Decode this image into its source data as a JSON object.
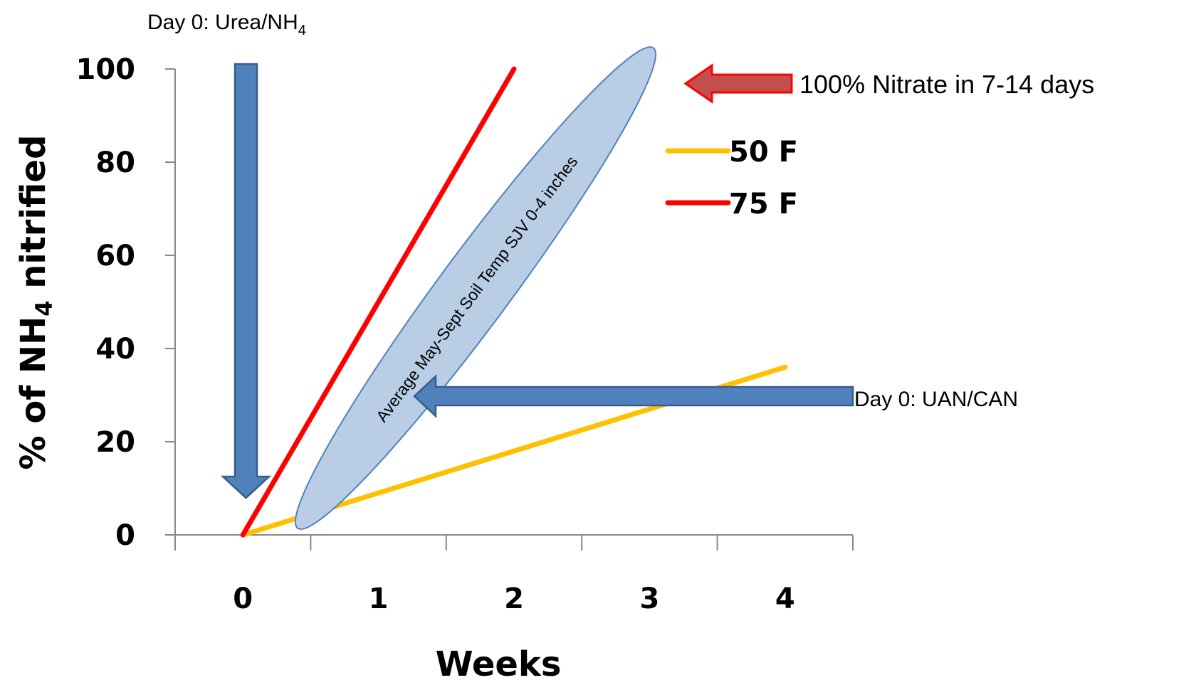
{
  "chart_data": {
    "type": "line",
    "xlabel": "Weeks",
    "ylabel_main": "% of NH",
    "ylabel_sub": "4",
    "ylabel_tail": " nitrified",
    "xlim": [
      -0.5,
      4.5
    ],
    "ylim": [
      0,
      100
    ],
    "x_ticks": [
      0,
      1,
      2,
      3,
      4
    ],
    "y_ticks": [
      0,
      20,
      40,
      60,
      80,
      100
    ],
    "grid": false,
    "legend_position": "right",
    "series": [
      {
        "name": "50 F",
        "color": "#FFC000",
        "x": [
          0,
          4
        ],
        "y": [
          0,
          36
        ]
      },
      {
        "name": "75 F",
        "color": "#FF0000",
        "x": [
          0,
          2
        ],
        "y": [
          0,
          100
        ]
      }
    ],
    "annotations": {
      "urea": {
        "text_main": "Day 0: Urea/NH",
        "text_sub": "4"
      },
      "nitrate": {
        "text": "100% Nitrate in 7-14 days"
      },
      "uan": {
        "text": "Day 0: UAN/CAN"
      },
      "ellipse": {
        "text": "Average May-Sept Soil Temp SJV 0-4 inches"
      }
    },
    "colors": {
      "arrow_blue": "#4F81BD",
      "arrow_blue_edge": "#385D8A",
      "ellipse_fill": "#B9CDE5",
      "ellipse_edge": "#4F81BD",
      "arrow_red_fill": "#C0504D",
      "arrow_red_edge": "#FF0000"
    }
  }
}
